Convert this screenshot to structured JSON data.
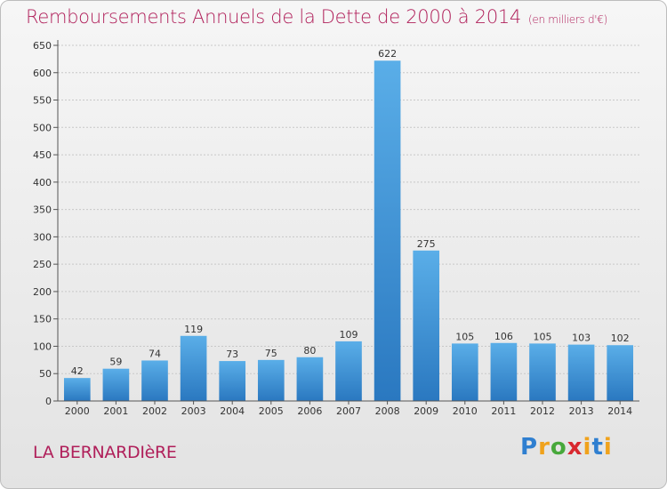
{
  "chart_data": {
    "type": "bar",
    "title": "Remboursements Annuels de la Dette de 2000 à 2014",
    "unit": "(en milliers d'€)",
    "categories": [
      "2000",
      "2001",
      "2002",
      "2003",
      "2004",
      "2005",
      "2006",
      "2007",
      "2008",
      "2009",
      "2010",
      "2011",
      "2012",
      "2013",
      "2014"
    ],
    "values": [
      42,
      59,
      74,
      119,
      73,
      75,
      80,
      109,
      622,
      275,
      105,
      106,
      105,
      103,
      102
    ],
    "ylim": [
      0,
      650
    ],
    "yticks": [
      0,
      50,
      100,
      150,
      200,
      250,
      300,
      350,
      400,
      450,
      500,
      550,
      600,
      650
    ],
    "grid": true,
    "bar_color": "#3d8fd6"
  },
  "commune": "LA BERNARDIèRE",
  "logo": {
    "letters": [
      "P",
      "r",
      "o",
      "x",
      "i",
      "t",
      "i"
    ]
  }
}
